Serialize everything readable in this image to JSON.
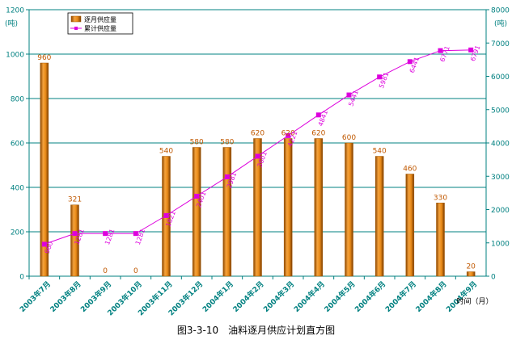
{
  "caption": "图3-3-10　油料逐月供应计划直方图",
  "chart_data": {
    "type": "bar+line",
    "categories": [
      "2003年7月",
      "2003年8月",
      "2003年9月",
      "2003年10月",
      "2003年11月",
      "2003年12月",
      "2004年1月",
      "2004年2月",
      "2004年3月",
      "2004年4月",
      "2004年5月",
      "2004年6月",
      "2004年7月",
      "2004年8月",
      "2004年9月"
    ],
    "series": [
      {
        "name": "逐月供应量",
        "type": "bar",
        "axis": "left",
        "values": [
          960,
          321,
          0,
          0,
          540,
          580,
          580,
          620,
          620,
          620,
          600,
          540,
          460,
          330,
          20
        ],
        "labels": [
          "960",
          "321",
          "0",
          "0",
          "540",
          "580",
          "580",
          "620",
          "620",
          "620",
          "600",
          "540",
          "460",
          "330",
          "20"
        ]
      },
      {
        "name": "累计供应量",
        "type": "line",
        "axis": "right",
        "values": [
          960,
          1281,
          1281,
          1281,
          1821,
          2401,
          2981,
          3601,
          4221,
          4841,
          5441,
          5981,
          6441,
          6771,
          6791
        ],
        "labels": [
          "960",
          "1281",
          "1281",
          "1281",
          "1821",
          "2401",
          "2981",
          "3601",
          "4221",
          "4841",
          "5441",
          "5981",
          "6441",
          "6771",
          "6791"
        ]
      }
    ],
    "y_left": {
      "label": "(吨)",
      "ylim": [
        0,
        1200
      ],
      "ticks": [
        "0",
        "200",
        "400",
        "600",
        "800",
        "1000",
        "1200"
      ]
    },
    "y_right": {
      "label": "(吨)",
      "ylim": [
        0,
        8000
      ],
      "ticks": [
        "0",
        "1000",
        "2000",
        "3000",
        "4000",
        "5000",
        "6000",
        "7000",
        "8000"
      ]
    },
    "xlabel": "时间（月）",
    "grid": true,
    "legend": "top-left",
    "colors": {
      "bar": "#e98a18",
      "bar_dark": "#a35700",
      "line": "#dd00dd",
      "grid": "#008080",
      "axis_text": "#008080",
      "bar_label": "#c05800"
    }
  }
}
